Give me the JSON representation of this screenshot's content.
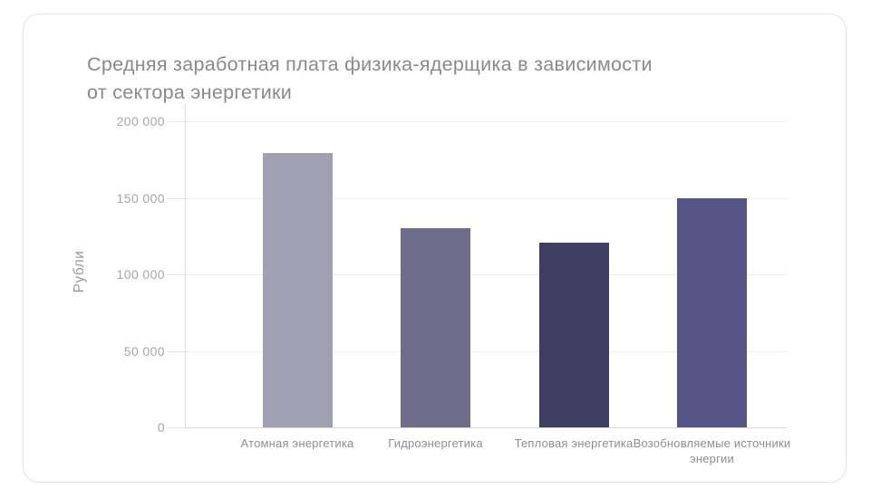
{
  "card": {
    "name": "salary-chart-card"
  },
  "chart_data": {
    "type": "bar",
    "title": "Средняя заработная плата физика-ядерщика в зависимости\nот сектора энергетики",
    "ylabel": "Рубли",
    "xlabel": "",
    "categories": [
      "Атомная энергетика",
      "Гидроэнергетика",
      "Тепловая энергетика",
      "Возобновляемые источники энергии"
    ],
    "values": [
      179000,
      130000,
      121000,
      150000
    ],
    "bar_colors": [
      "#a1a0b2",
      "#6f6d8a",
      "#3e3d62",
      "#555687"
    ],
    "y_ticks": [
      {
        "value": 0,
        "label": "0"
      },
      {
        "value": 50000,
        "label": "50 000"
      },
      {
        "value": 100000,
        "label": "100 000"
      },
      {
        "value": 150000,
        "label": "150 000"
      },
      {
        "value": 200000,
        "label": "200 000"
      }
    ],
    "ylim": [
      0,
      200000
    ],
    "grid": true,
    "legend": false
  }
}
